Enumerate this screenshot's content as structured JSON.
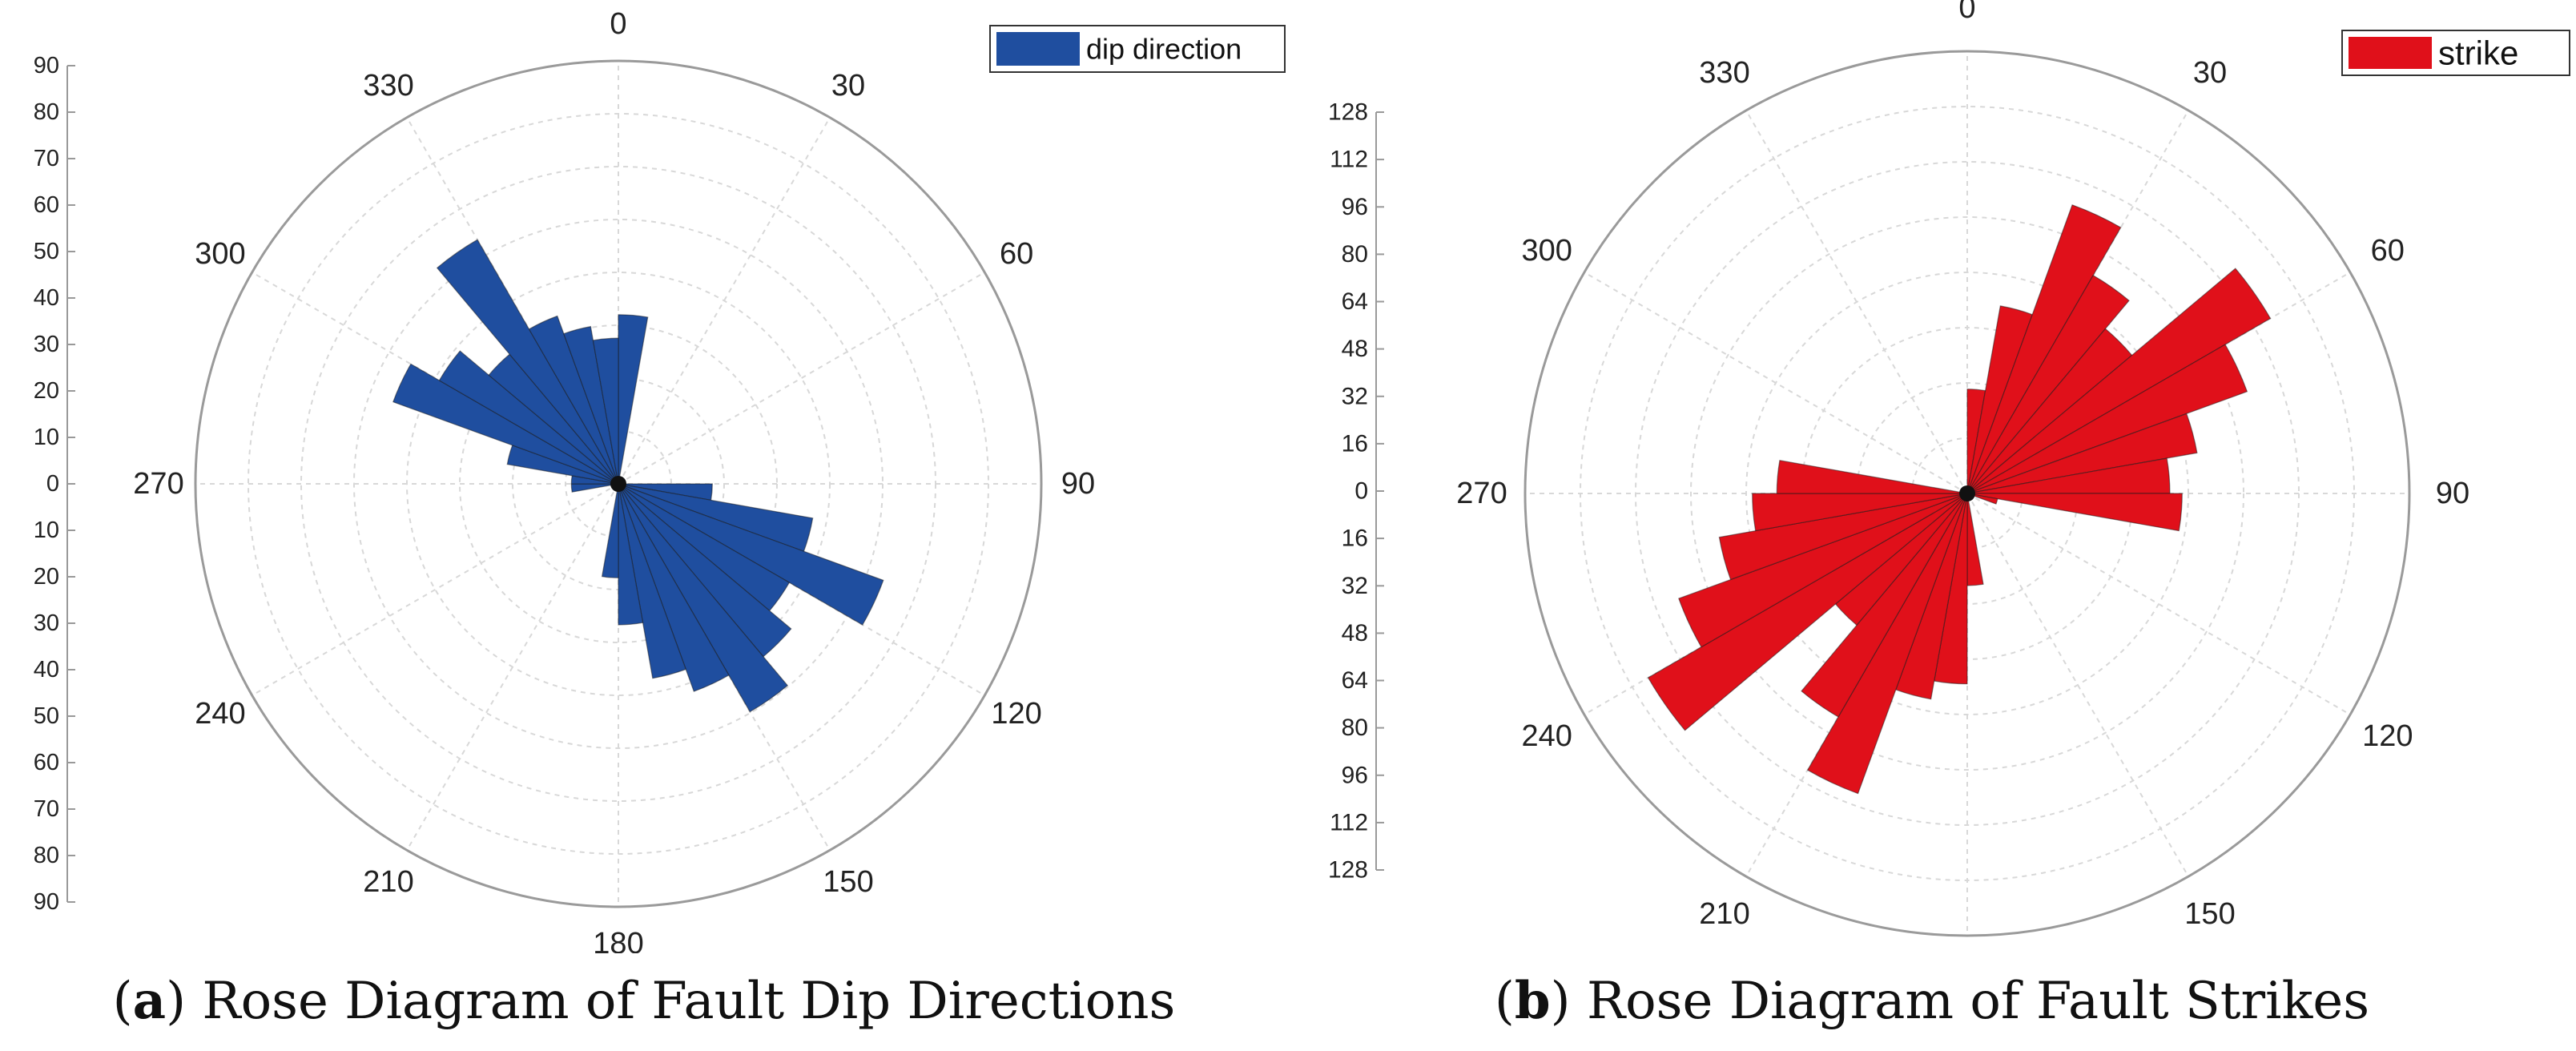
{
  "chart_data": [
    {
      "type": "rose",
      "legend": {
        "label": "dip direction",
        "color": "#1f4e9f",
        "position": "top-right"
      },
      "angular_ticks": [
        "0",
        "30",
        "60",
        "90",
        "120",
        "150",
        "180",
        "210",
        "240",
        "270",
        "300",
        "330"
      ],
      "radial_ticks": [
        "90",
        "80",
        "70",
        "60",
        "50",
        "40",
        "30",
        "20",
        "10",
        "0",
        "10",
        "20",
        "30",
        "40",
        "50",
        "60",
        "70",
        "80",
        "90"
      ],
      "rmax": 90,
      "bin_width_deg": 10,
      "bins": [
        {
          "start": 0,
          "value": 36
        },
        {
          "start": 90,
          "value": 20
        },
        {
          "start": 100,
          "value": 42
        },
        {
          "start": 110,
          "value": 60
        },
        {
          "start": 120,
          "value": 42
        },
        {
          "start": 130,
          "value": 48
        },
        {
          "start": 140,
          "value": 56
        },
        {
          "start": 150,
          "value": 47
        },
        {
          "start": 160,
          "value": 42
        },
        {
          "start": 170,
          "value": 30
        },
        {
          "start": 180,
          "value": 20
        },
        {
          "start": 260,
          "value": 10
        },
        {
          "start": 270,
          "value": 10
        },
        {
          "start": 280,
          "value": 24
        },
        {
          "start": 290,
          "value": 51
        },
        {
          "start": 300,
          "value": 44
        },
        {
          "start": 310,
          "value": 36
        },
        {
          "start": 320,
          "value": 60
        },
        {
          "start": 330,
          "value": 38
        },
        {
          "start": 340,
          "value": 34
        },
        {
          "start": 350,
          "value": 31
        }
      ],
      "caption_label": "a",
      "caption_text": "Rose Diagram of Fault Dip Directions"
    },
    {
      "type": "rose",
      "legend": {
        "label": "strike",
        "color": "#e0101a",
        "position": "top-right"
      },
      "angular_ticks": [
        "0",
        "30",
        "60",
        "90",
        "120",
        "150",
        "180",
        "210",
        "240",
        "270",
        "300",
        "330"
      ],
      "radial_ticks": [
        "128",
        "112",
        "96",
        "80",
        "64",
        "48",
        "32",
        "16",
        "0",
        "16",
        "32",
        "48",
        "64",
        "80",
        "96",
        "112",
        "128"
      ],
      "rmax": 144,
      "bin_width_deg": 10,
      "bins": [
        {
          "start": 0,
          "value": 34
        },
        {
          "start": 10,
          "value": 62
        },
        {
          "start": 20,
          "value": 100
        },
        {
          "start": 30,
          "value": 82
        },
        {
          "start": 40,
          "value": 70
        },
        {
          "start": 50,
          "value": 114
        },
        {
          "start": 60,
          "value": 97
        },
        {
          "start": 70,
          "value": 76
        },
        {
          "start": 80,
          "value": 66
        },
        {
          "start": 90,
          "value": 70
        },
        {
          "start": 100,
          "value": 10
        },
        {
          "start": 170,
          "value": 30
        },
        {
          "start": 180,
          "value": 62
        },
        {
          "start": 190,
          "value": 68
        },
        {
          "start": 200,
          "value": 104
        },
        {
          "start": 210,
          "value": 84
        },
        {
          "start": 220,
          "value": 56
        },
        {
          "start": 230,
          "value": 120
        },
        {
          "start": 240,
          "value": 100
        },
        {
          "start": 250,
          "value": 82
        },
        {
          "start": 260,
          "value": 70
        },
        {
          "start": 270,
          "value": 62
        }
      ],
      "caption_label": "b",
      "caption_text": "Rose Diagram of Fault Strikes"
    }
  ]
}
